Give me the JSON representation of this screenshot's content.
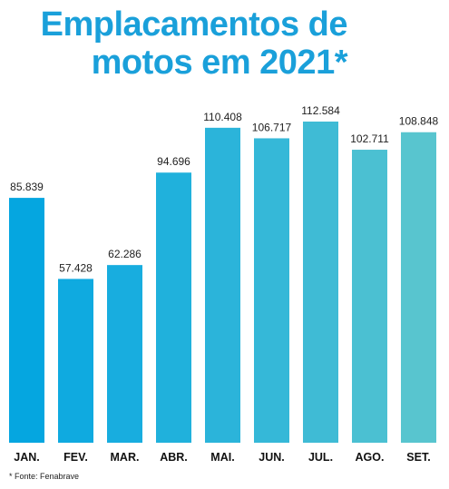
{
  "title_line1": "Emplacamentos de",
  "title_line2": "motos em 2021*",
  "source": "* Fonte: Fenabrave",
  "colors": [
    "#05a6e0",
    "#0faae0",
    "#18addf",
    "#20b1dc",
    "#2bb4da",
    "#35b8d8",
    "#3fbbd5",
    "#4bc0d2",
    "#58c5cf"
  ],
  "chart_data": {
    "type": "bar",
    "title": "Emplacamentos de motos em 2021*",
    "categories": [
      "JAN.",
      "FEV.",
      "MAR.",
      "ABR.",
      "MAI.",
      "JUN.",
      "JUL.",
      "AGO.",
      "SET."
    ],
    "values": [
      85839,
      57428,
      62286,
      94696,
      110408,
      106717,
      112584,
      102711,
      108848
    ],
    "value_labels": [
      "85.839",
      "57.428",
      "62.286",
      "94.696",
      "110.408",
      "106.717",
      "112.584",
      "102.711",
      "108.848"
    ],
    "xlabel": "",
    "ylabel": "",
    "grid": false,
    "legend": "none"
  }
}
